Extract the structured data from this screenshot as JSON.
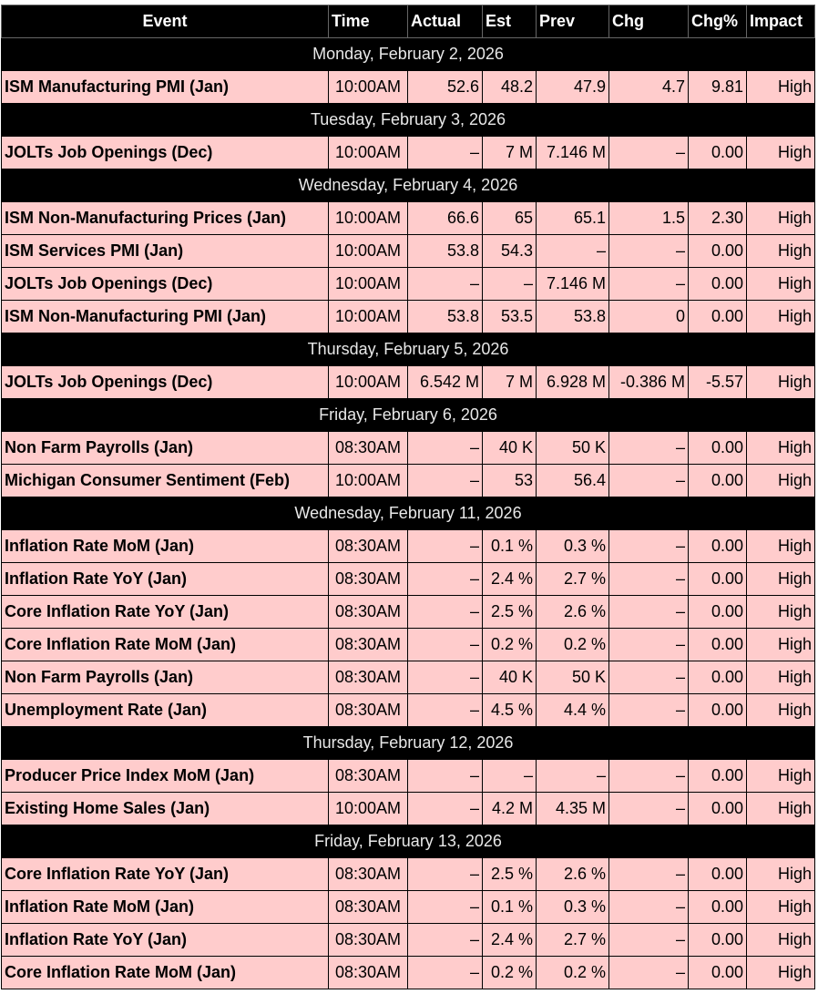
{
  "table": {
    "headers": [
      "Event",
      "Time",
      "Actual",
      "Est",
      "Prev",
      "Chg",
      "Chg%",
      "Impact"
    ],
    "groups": [
      {
        "date": "Monday, February 2, 2026",
        "rows": [
          [
            "ISM Manufacturing PMI (Jan)",
            "10:00AM",
            "52.6",
            "48.2",
            "47.9",
            "4.7",
            "9.81",
            "High"
          ]
        ]
      },
      {
        "date": "Tuesday, February 3, 2026",
        "rows": [
          [
            "JOLTs Job Openings (Dec)",
            "10:00AM",
            "–",
            "7 M",
            "7.146 M",
            "–",
            "0.00",
            "High"
          ]
        ]
      },
      {
        "date": "Wednesday, February 4, 2026",
        "rows": [
          [
            "ISM Non-Manufacturing Prices (Jan)",
            "10:00AM",
            "66.6",
            "65",
            "65.1",
            "1.5",
            "2.30",
            "High"
          ],
          [
            "ISM Services PMI (Jan)",
            "10:00AM",
            "53.8",
            "54.3",
            "–",
            "–",
            "0.00",
            "High"
          ],
          [
            "JOLTs Job Openings (Dec)",
            "10:00AM",
            "–",
            "–",
            "7.146 M",
            "–",
            "0.00",
            "High"
          ],
          [
            "ISM Non-Manufacturing PMI (Jan)",
            "10:00AM",
            "53.8",
            "53.5",
            "53.8",
            "0",
            "0.00",
            "High"
          ]
        ]
      },
      {
        "date": "Thursday, February 5, 2026",
        "rows": [
          [
            "JOLTs Job Openings (Dec)",
            "10:00AM",
            "6.542 M",
            "7 M",
            "6.928 M",
            "-0.386 M",
            "-5.57",
            "High"
          ]
        ]
      },
      {
        "date": "Friday, February 6, 2026",
        "rows": [
          [
            "Non Farm Payrolls (Jan)",
            "08:30AM",
            "–",
            "40 K",
            "50 K",
            "–",
            "0.00",
            "High"
          ],
          [
            "Michigan Consumer Sentiment (Feb)",
            "10:00AM",
            "–",
            "53",
            "56.4",
            "–",
            "0.00",
            "High"
          ]
        ]
      },
      {
        "date": "Wednesday, February 11, 2026",
        "rows": [
          [
            "Inflation Rate MoM (Jan)",
            "08:30AM",
            "–",
            "0.1 %",
            "0.3 %",
            "–",
            "0.00",
            "High"
          ],
          [
            "Inflation Rate YoY (Jan)",
            "08:30AM",
            "–",
            "2.4 %",
            "2.7 %",
            "–",
            "0.00",
            "High"
          ],
          [
            "Core Inflation Rate YoY (Jan)",
            "08:30AM",
            "–",
            "2.5 %",
            "2.6 %",
            "–",
            "0.00",
            "High"
          ],
          [
            "Core Inflation Rate MoM (Jan)",
            "08:30AM",
            "–",
            "0.2 %",
            "0.2 %",
            "–",
            "0.00",
            "High"
          ],
          [
            "Non Farm Payrolls (Jan)",
            "08:30AM",
            "–",
            "40 K",
            "50 K",
            "–",
            "0.00",
            "High"
          ],
          [
            "Unemployment Rate (Jan)",
            "08:30AM",
            "–",
            "4.5 %",
            "4.4 %",
            "–",
            "0.00",
            "High"
          ]
        ]
      },
      {
        "date": "Thursday, February 12, 2026",
        "rows": [
          [
            "Producer Price Index MoM (Jan)",
            "08:30AM",
            "–",
            "–",
            "–",
            "–",
            "0.00",
            "High"
          ],
          [
            "Existing Home Sales (Jan)",
            "10:00AM",
            "–",
            "4.2 M",
            "4.35 M",
            "–",
            "0.00",
            "High"
          ]
        ]
      },
      {
        "date": "Friday, February 13, 2026",
        "rows": [
          [
            "Core Inflation Rate YoY (Jan)",
            "08:30AM",
            "–",
            "2.5 %",
            "2.6 %",
            "–",
            "0.00",
            "High"
          ],
          [
            "Inflation Rate MoM (Jan)",
            "08:30AM",
            "–",
            "0.1 %",
            "0.3 %",
            "–",
            "0.00",
            "High"
          ],
          [
            "Inflation Rate YoY (Jan)",
            "08:30AM",
            "–",
            "2.4 %",
            "2.7 %",
            "–",
            "0.00",
            "High"
          ],
          [
            "Core Inflation Rate MoM (Jan)",
            "08:30AM",
            "–",
            "0.2 %",
            "0.2 %",
            "–",
            "0.00",
            "High"
          ]
        ]
      }
    ]
  }
}
